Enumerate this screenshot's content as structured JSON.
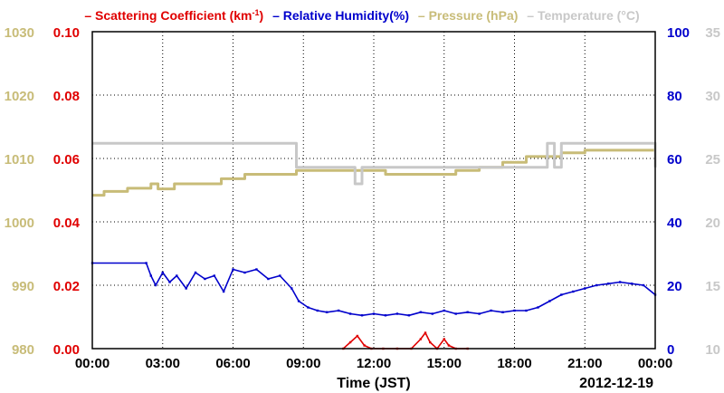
{
  "chart_data": {
    "type": "line",
    "date_label": "2012-12-19",
    "xlabel": "Time (JST)",
    "x_ticks": [
      "00:00",
      "03:00",
      "06:00",
      "09:00",
      "12:00",
      "15:00",
      "18:00",
      "21:00",
      "00:00"
    ],
    "grid": true,
    "legend_position": "top",
    "axes": {
      "pressure": {
        "ticks": [
          "980",
          "990",
          "1000",
          "1010",
          "1020",
          "1030"
        ],
        "range": [
          980,
          1030
        ],
        "color": "#c8bc78"
      },
      "scattering": {
        "ticks": [
          "0.00",
          "0.02",
          "0.04",
          "0.06",
          "0.08",
          "0.10"
        ],
        "range": [
          0,
          0.1
        ],
        "color": "#e00000"
      },
      "humidity": {
        "ticks": [
          "0",
          "20",
          "40",
          "60",
          "80",
          "100"
        ],
        "range": [
          0,
          100
        ],
        "color": "#0000cc"
      },
      "temperature": {
        "ticks": [
          "10",
          "15",
          "20",
          "25",
          "30",
          "35"
        ],
        "range": [
          10,
          35
        ],
        "color": "#c8c8c8"
      }
    },
    "legend": {
      "scattering_prefix": "– Scattering Coefficient (km",
      "scattering_sup": "-1",
      "scattering_suffix": ")",
      "humidity": "– Relative Humidity(%)",
      "pressure": "– Pressure (hPa)",
      "temperature": "– Temperature (°C)"
    },
    "series": [
      {
        "name": "Pressure (hPa)",
        "axis": "pressure",
        "color": "#c8bc78",
        "step": true,
        "x": [
          0,
          0.5,
          1.5,
          2.5,
          2.8,
          3.5,
          4.5,
          5.5,
          6.5,
          8.7,
          10.5,
          12.5,
          14.5,
          15.5,
          16.5,
          17.5,
          18.5,
          20.0,
          21.0,
          22.5,
          24.0
        ],
        "y": [
          1004.2,
          1004.8,
          1005.3,
          1006.0,
          1005.2,
          1006.0,
          1006.0,
          1006.8,
          1007.5,
          1008.1,
          1008.1,
          1007.5,
          1007.5,
          1008.1,
          1008.6,
          1009.4,
          1010.3,
          1010.9,
          1011.3,
          1011.3,
          1011.3
        ]
      },
      {
        "name": "Temperature (C)",
        "axis": "temperature",
        "color": "#c8c8c8",
        "step": true,
        "x": [
          0,
          8.7,
          11.2,
          11.5,
          19.4,
          19.7,
          20.0,
          24.0
        ],
        "y": [
          26.2,
          24.3,
          23.0,
          24.3,
          26.2,
          24.3,
          26.2,
          24.3
        ]
      },
      {
        "name": "Relative Humidity(%)",
        "axis": "humidity",
        "color": "#0000cc",
        "step": false,
        "x": [
          0,
          2.3,
          2.5,
          2.7,
          3.0,
          3.3,
          3.6,
          4.0,
          4.4,
          4.8,
          5.2,
          5.6,
          6.0,
          6.5,
          7.0,
          7.5,
          8.0,
          8.5,
          8.8,
          9.2,
          9.6,
          10.0,
          10.5,
          11.0,
          11.5,
          12.0,
          12.5,
          13.0,
          13.5,
          14.0,
          14.5,
          15.0,
          15.5,
          16.0,
          16.5,
          17.0,
          17.5,
          18.0,
          18.5,
          19.0,
          19.5,
          20.0,
          20.5,
          21.0,
          21.5,
          22.0,
          22.5,
          23.0,
          23.5,
          24.0
        ],
        "y": [
          27,
          27,
          23,
          20,
          24,
          21,
          23,
          19,
          24,
          22,
          23,
          18,
          25,
          24,
          25,
          22,
          23,
          19,
          15,
          13,
          12,
          11.5,
          12,
          11,
          10.5,
          11,
          10.5,
          11,
          10.5,
          11.5,
          11,
          12,
          11,
          11.5,
          11,
          12,
          11.5,
          12,
          12,
          13,
          15,
          17,
          18,
          19,
          20,
          20.5,
          21,
          20.5,
          20,
          17
        ]
      },
      {
        "name": "Scattering Coefficient (km-1)",
        "axis": "scattering",
        "color": "#e00000",
        "step": false,
        "x": [
          10.7,
          11.0,
          11.3,
          11.6,
          11.9,
          12.4,
          13.0,
          13.6,
          14.0,
          14.2,
          14.4,
          14.7,
          15.0,
          15.2,
          15.5,
          16.0
        ],
        "y": [
          0.0,
          0.002,
          0.004,
          0.001,
          0.0,
          0.0,
          0.0,
          0.0,
          0.003,
          0.005,
          0.002,
          0.0,
          0.003,
          0.001,
          0.0,
          0.0
        ]
      }
    ]
  }
}
